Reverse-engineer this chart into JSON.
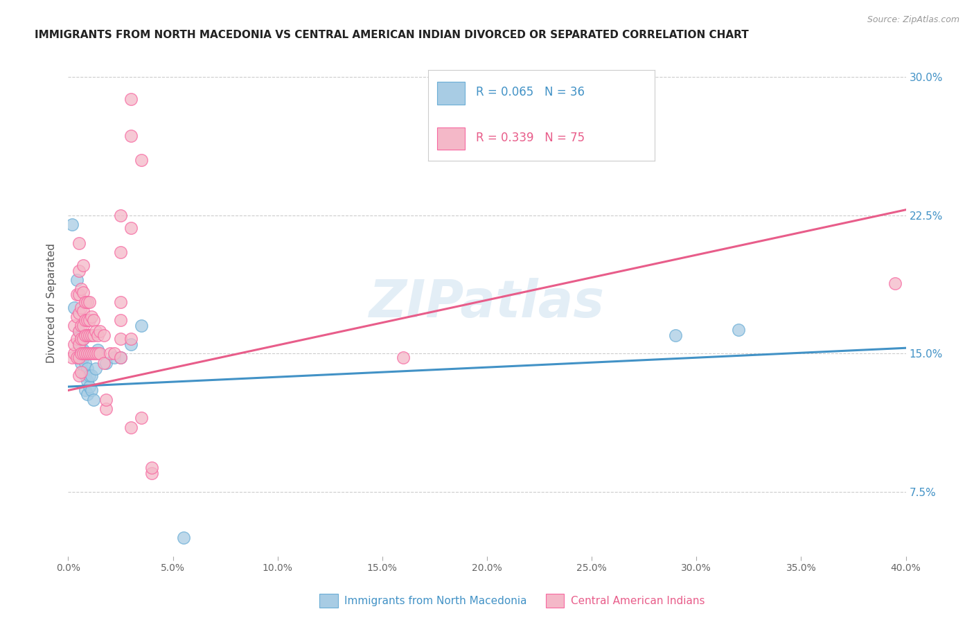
{
  "title": "IMMIGRANTS FROM NORTH MACEDONIA VS CENTRAL AMERICAN INDIAN DIVORCED OR SEPARATED CORRELATION CHART",
  "source": "Source: ZipAtlas.com",
  "ylabel": "Divorced or Separated",
  "ytick_labels": [
    "7.5%",
    "15.0%",
    "22.5%",
    "30.0%"
  ],
  "legend1_r": "R = 0.065",
  "legend1_n": "N = 36",
  "legend2_r": "R = 0.339",
  "legend2_n": "N = 75",
  "legend_label1": "Immigrants from North Macedonia",
  "legend_label2": "Central American Indians",
  "watermark": "ZIPatlas",
  "blue_color": "#a8cce4",
  "pink_color": "#f4b8c8",
  "blue_edge_color": "#6baed6",
  "pink_edge_color": "#f768a1",
  "blue_line_color": "#4292c6",
  "pink_line_color": "#e85d8a",
  "blue_scatter": [
    [
      0.002,
      0.22
    ],
    [
      0.003,
      0.175
    ],
    [
      0.004,
      0.19
    ],
    [
      0.005,
      0.148
    ],
    [
      0.005,
      0.155
    ],
    [
      0.005,
      0.162
    ],
    [
      0.006,
      0.145
    ],
    [
      0.006,
      0.152
    ],
    [
      0.006,
      0.16
    ],
    [
      0.006,
      0.148
    ],
    [
      0.007,
      0.14
    ],
    [
      0.007,
      0.148
    ],
    [
      0.007,
      0.152
    ],
    [
      0.007,
      0.158
    ],
    [
      0.008,
      0.13
    ],
    [
      0.008,
      0.138
    ],
    [
      0.008,
      0.145
    ],
    [
      0.008,
      0.15
    ],
    [
      0.009,
      0.128
    ],
    [
      0.009,
      0.135
    ],
    [
      0.009,
      0.142
    ],
    [
      0.01,
      0.132
    ],
    [
      0.01,
      0.138
    ],
    [
      0.011,
      0.13
    ],
    [
      0.011,
      0.138
    ],
    [
      0.012,
      0.125
    ],
    [
      0.013,
      0.142
    ],
    [
      0.014,
      0.152
    ],
    [
      0.018,
      0.145
    ],
    [
      0.022,
      0.148
    ],
    [
      0.025,
      0.148
    ],
    [
      0.03,
      0.155
    ],
    [
      0.035,
      0.165
    ],
    [
      0.29,
      0.16
    ],
    [
      0.32,
      0.163
    ],
    [
      0.055,
      0.05
    ]
  ],
  "pink_scatter": [
    [
      0.002,
      0.148
    ],
    [
      0.003,
      0.15
    ],
    [
      0.003,
      0.155
    ],
    [
      0.003,
      0.165
    ],
    [
      0.004,
      0.148
    ],
    [
      0.004,
      0.158
    ],
    [
      0.004,
      0.17
    ],
    [
      0.004,
      0.182
    ],
    [
      0.005,
      0.138
    ],
    [
      0.005,
      0.148
    ],
    [
      0.005,
      0.155
    ],
    [
      0.005,
      0.162
    ],
    [
      0.005,
      0.172
    ],
    [
      0.005,
      0.182
    ],
    [
      0.005,
      0.195
    ],
    [
      0.005,
      0.21
    ],
    [
      0.006,
      0.14
    ],
    [
      0.006,
      0.15
    ],
    [
      0.006,
      0.158
    ],
    [
      0.006,
      0.165
    ],
    [
      0.006,
      0.175
    ],
    [
      0.006,
      0.185
    ],
    [
      0.007,
      0.15
    ],
    [
      0.007,
      0.158
    ],
    [
      0.007,
      0.165
    ],
    [
      0.007,
      0.173
    ],
    [
      0.007,
      0.183
    ],
    [
      0.007,
      0.198
    ],
    [
      0.008,
      0.15
    ],
    [
      0.008,
      0.16
    ],
    [
      0.008,
      0.168
    ],
    [
      0.008,
      0.178
    ],
    [
      0.009,
      0.15
    ],
    [
      0.009,
      0.16
    ],
    [
      0.009,
      0.168
    ],
    [
      0.009,
      0.178
    ],
    [
      0.01,
      0.15
    ],
    [
      0.01,
      0.16
    ],
    [
      0.01,
      0.168
    ],
    [
      0.01,
      0.178
    ],
    [
      0.011,
      0.15
    ],
    [
      0.011,
      0.16
    ],
    [
      0.011,
      0.17
    ],
    [
      0.012,
      0.15
    ],
    [
      0.012,
      0.16
    ],
    [
      0.012,
      0.168
    ],
    [
      0.013,
      0.15
    ],
    [
      0.013,
      0.162
    ],
    [
      0.014,
      0.15
    ],
    [
      0.014,
      0.16
    ],
    [
      0.015,
      0.15
    ],
    [
      0.015,
      0.162
    ],
    [
      0.017,
      0.145
    ],
    [
      0.017,
      0.16
    ],
    [
      0.018,
      0.12
    ],
    [
      0.018,
      0.125
    ],
    [
      0.02,
      0.15
    ],
    [
      0.022,
      0.15
    ],
    [
      0.025,
      0.148
    ],
    [
      0.025,
      0.158
    ],
    [
      0.025,
      0.168
    ],
    [
      0.025,
      0.178
    ],
    [
      0.025,
      0.205
    ],
    [
      0.025,
      0.225
    ],
    [
      0.03,
      0.11
    ],
    [
      0.03,
      0.158
    ],
    [
      0.03,
      0.218
    ],
    [
      0.03,
      0.268
    ],
    [
      0.03,
      0.288
    ],
    [
      0.035,
      0.115
    ],
    [
      0.035,
      0.255
    ],
    [
      0.04,
      0.085
    ],
    [
      0.04,
      0.088
    ],
    [
      0.16,
      0.148
    ],
    [
      0.395,
      0.188
    ]
  ],
  "xlim": [
    0.0,
    0.4
  ],
  "ylim": [
    0.04,
    0.315
  ],
  "yticks": [
    0.075,
    0.15,
    0.225,
    0.3
  ],
  "xticks": [
    0.0,
    0.05,
    0.1,
    0.15,
    0.2,
    0.25,
    0.3,
    0.35,
    0.4
  ],
  "blue_trend_x": [
    0.0,
    0.4
  ],
  "blue_trend_y": [
    0.132,
    0.153
  ],
  "pink_trend_x": [
    0.0,
    0.4
  ],
  "pink_trend_y": [
    0.13,
    0.228
  ]
}
